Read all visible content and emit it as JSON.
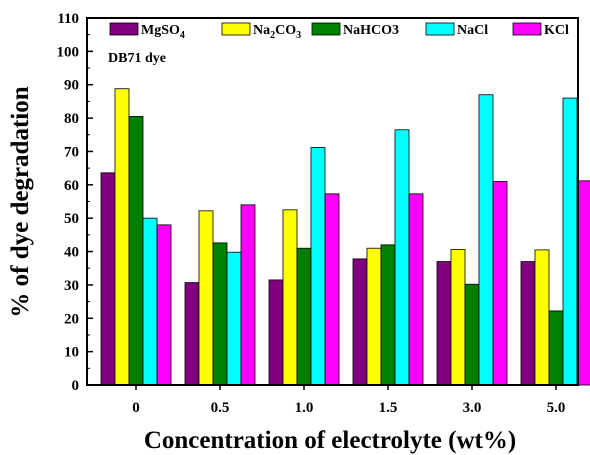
{
  "chart_data": {
    "type": "bar",
    "annotation": "DB71 dye",
    "xlabel": "Concentration of electrolyte (wt%)",
    "ylabel": "% of dye degradation",
    "ylim": [
      0,
      110
    ],
    "yticks": [
      "0",
      "10",
      "20",
      "30",
      "40",
      "50",
      "60",
      "70",
      "80",
      "90",
      "100",
      "110"
    ],
    "categories": [
      "0",
      "0.5",
      "1.0",
      "1.5",
      "3.0",
      "5.0"
    ],
    "grid": false,
    "legend_position": "top",
    "series": [
      {
        "name": "MgSO",
        "subscript": "4",
        "color": "#800080",
        "values": [
          63.6,
          30.7,
          31.5,
          37.8,
          37.0,
          37.0
        ]
      },
      {
        "name": "Na",
        "subscript": "2",
        "name_tail": "CO",
        "subscript2": "3",
        "color": "#ffff00",
        "values": [
          88.8,
          52.2,
          52.5,
          41.0,
          40.6,
          40.5
        ]
      },
      {
        "name": "NaHCO3",
        "color": "#008000",
        "values": [
          80.5,
          42.6,
          41.0,
          42.0,
          30.2,
          22.2
        ]
      },
      {
        "name": "NaCl",
        "color": "#00ffff",
        "values": [
          50.0,
          39.8,
          71.2,
          76.5,
          87.0,
          86.0
        ]
      },
      {
        "name": "KCl",
        "color": "#ff00ff",
        "values": [
          48.0,
          54.0,
          57.3,
          57.3,
          61.0,
          61.2
        ]
      }
    ]
  }
}
